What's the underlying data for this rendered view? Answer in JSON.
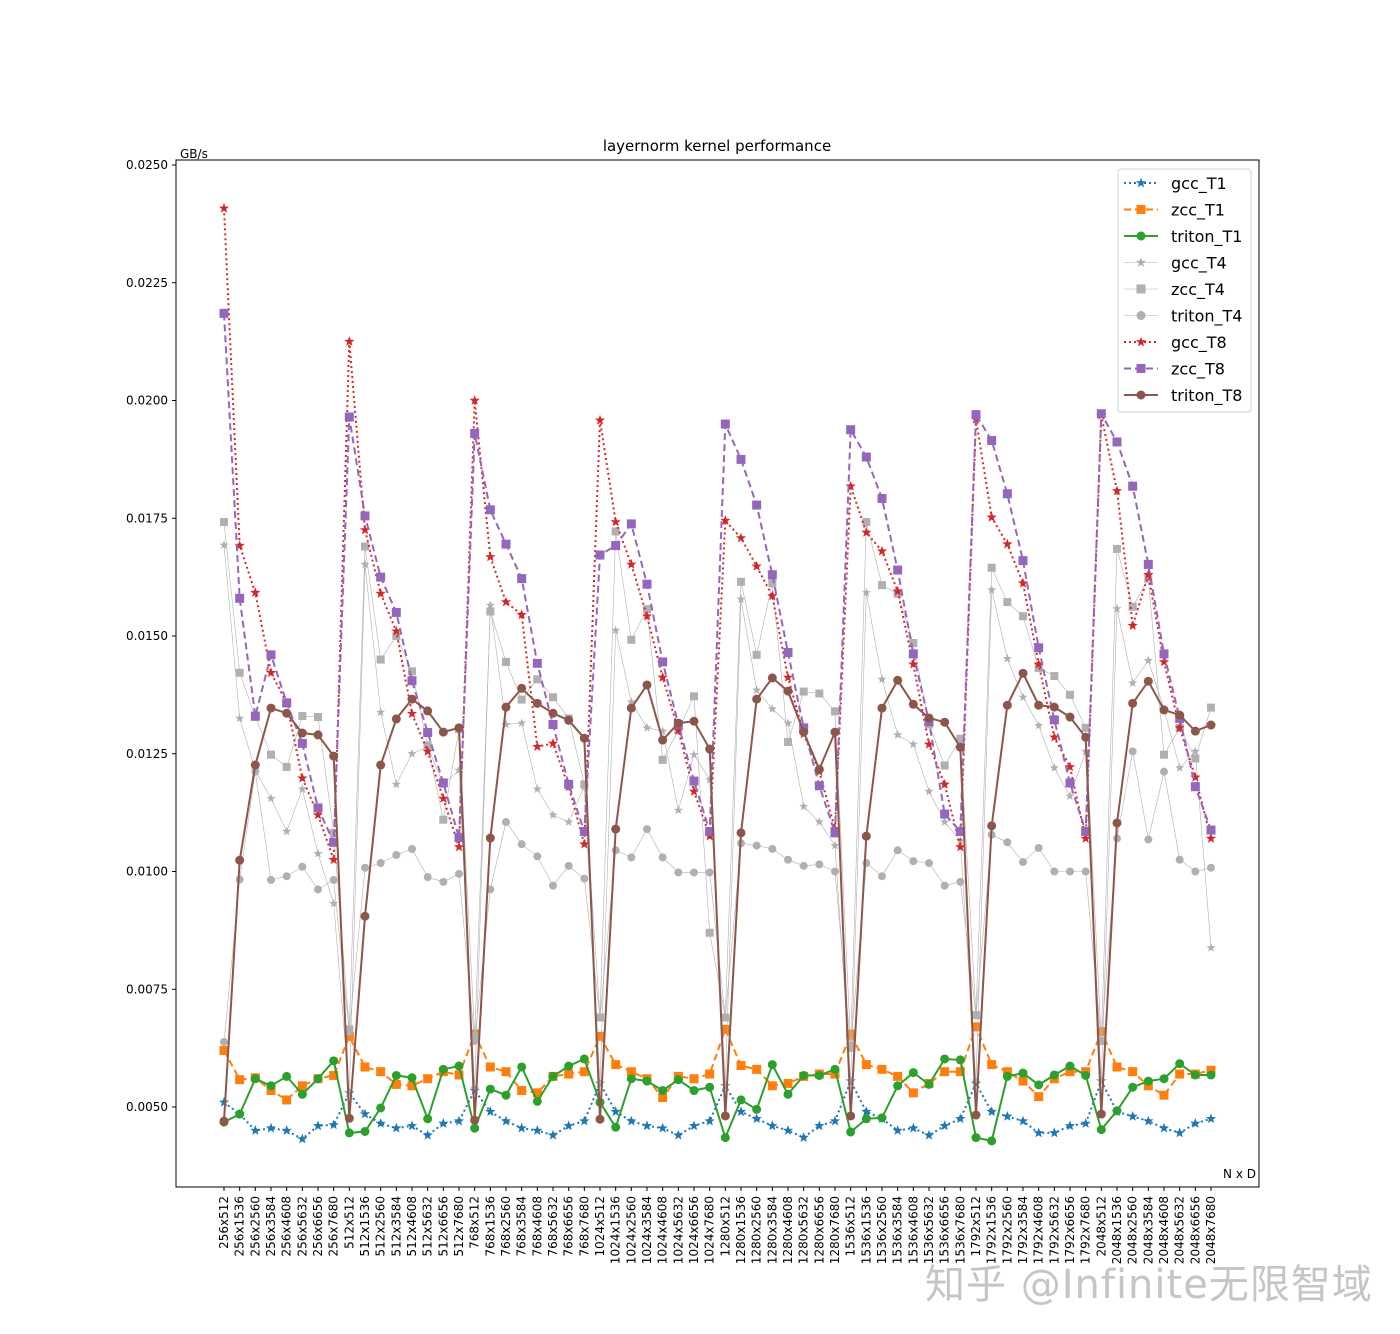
{
  "watermark": "知乎 @Infinite无限智域",
  "chart_data": {
    "type": "line",
    "title": "layernorm kernel performance",
    "xlabel": "N x D",
    "ylabel": "GB/s",
    "ylim": [
      0.0039,
      0.0251
    ],
    "yticks": [
      "0.0050",
      "0.0075",
      "0.0100",
      "0.0125",
      "0.0150",
      "0.0175",
      "0.0200",
      "0.0225",
      "0.0250"
    ],
    "grid": false,
    "legend_position": "upper right",
    "categories": [
      "256x512",
      "256x1536",
      "256x2560",
      "256x3584",
      "256x4608",
      "256x5632",
      "256x6656",
      "256x7680",
      "512x512",
      "512x1536",
      "512x2560",
      "512x3584",
      "512x4608",
      "512x5632",
      "512x6656",
      "512x7680",
      "768x512",
      "768x1536",
      "768x2560",
      "768x3584",
      "768x4608",
      "768x5632",
      "768x6656",
      "768x7680",
      "1024x512",
      "1024x1536",
      "1024x2560",
      "1024x3584",
      "1024x4608",
      "1024x5632",
      "1024x6656",
      "1024x7680",
      "1280x512",
      "1280x1536",
      "1280x2560",
      "1280x3584",
      "1280x4608",
      "1280x5632",
      "1280x6656",
      "1280x7680",
      "1536x512",
      "1536x1536",
      "1536x2560",
      "1536x3584",
      "1536x4608",
      "1536x5632",
      "1536x6656",
      "1536x7680",
      "1792x512",
      "1792x1536",
      "1792x2560",
      "1792x3584",
      "1792x4608",
      "1792x5632",
      "1792x6656",
      "1792x7680",
      "2048x512",
      "2048x1536",
      "2048x2560",
      "2048x3584",
      "2048x4608",
      "2048x5632",
      "2048x6656",
      "2048x7680"
    ],
    "series": [
      {
        "name": "gcc_T1",
        "color": "#1f77b4",
        "linestyle": "dotted",
        "marker": "star",
        "width": 2,
        "values": [
          0.0051,
          0.00485,
          0.0045,
          0.00455,
          0.0045,
          0.00432,
          0.0046,
          0.00462,
          0.0053,
          0.00485,
          0.00465,
          0.00455,
          0.0046,
          0.0044,
          0.00465,
          0.0047,
          0.00535,
          0.0049,
          0.0047,
          0.00455,
          0.0045,
          0.0044,
          0.0046,
          0.0047,
          0.0055,
          0.0049,
          0.0047,
          0.0046,
          0.00455,
          0.0044,
          0.0046,
          0.0047,
          0.00545,
          0.0049,
          0.00475,
          0.0046,
          0.0045,
          0.00435,
          0.0046,
          0.0047,
          0.00555,
          0.0049,
          0.00475,
          0.0045,
          0.00455,
          0.0044,
          0.0046,
          0.00475,
          0.0055,
          0.0049,
          0.0048,
          0.0047,
          0.00445,
          0.00445,
          0.0046,
          0.00465,
          0.00555,
          0.0049,
          0.0048,
          0.0047,
          0.00455,
          0.00445,
          0.00465,
          0.00475
        ]
      },
      {
        "name": "zcc_T1",
        "color": "#ff7f0e",
        "linestyle": "dashed",
        "marker": "square",
        "width": 2,
        "values": [
          0.0062,
          0.00558,
          0.00562,
          0.00535,
          0.00515,
          0.00545,
          0.0056,
          0.00567,
          0.0065,
          0.00585,
          0.00575,
          0.00548,
          0.00545,
          0.0056,
          0.00575,
          0.00568,
          0.00655,
          0.00585,
          0.00575,
          0.00535,
          0.0053,
          0.00565,
          0.0057,
          0.00575,
          0.0065,
          0.0059,
          0.00575,
          0.0056,
          0.0052,
          0.00565,
          0.0056,
          0.0057,
          0.00665,
          0.00588,
          0.0058,
          0.00545,
          0.0055,
          0.00565,
          0.0057,
          0.0057,
          0.00655,
          0.0059,
          0.0058,
          0.00565,
          0.0053,
          0.0055,
          0.00575,
          0.00575,
          0.0067,
          0.0059,
          0.00575,
          0.00555,
          0.00522,
          0.0056,
          0.00575,
          0.00575,
          0.0066,
          0.00585,
          0.00575,
          0.00545,
          0.00525,
          0.0057,
          0.0057,
          0.00578
        ]
      },
      {
        "name": "triton_T1",
        "color": "#2ca02c",
        "linestyle": "solid",
        "marker": "circle",
        "width": 2,
        "values": [
          0.00468,
          0.00485,
          0.0056,
          0.00545,
          0.00565,
          0.00527,
          0.0056,
          0.00598,
          0.00445,
          0.00448,
          0.00498,
          0.00567,
          0.00562,
          0.00475,
          0.0058,
          0.00587,
          0.00455,
          0.00538,
          0.00525,
          0.00585,
          0.00512,
          0.00565,
          0.00587,
          0.00602,
          0.0051,
          0.00457,
          0.0056,
          0.00555,
          0.00535,
          0.00558,
          0.00535,
          0.00542,
          0.00435,
          0.00515,
          0.00495,
          0.0059,
          0.00527,
          0.00567,
          0.00567,
          0.0058,
          0.00447,
          0.00475,
          0.00477,
          0.00545,
          0.00573,
          0.00548,
          0.00602,
          0.006,
          0.00435,
          0.00428,
          0.00565,
          0.00572,
          0.00547,
          0.00568,
          0.00587,
          0.00567,
          0.00452,
          0.00492,
          0.00542,
          0.00555,
          0.0056,
          0.00592,
          0.00568,
          0.00568
        ]
      },
      {
        "name": "gcc_T4",
        "color": "#b0b0b0",
        "linestyle": "thin",
        "marker": "star",
        "width": 0.6,
        "values": [
          0.01693,
          0.01325,
          0.01215,
          0.01155,
          0.01085,
          0.01175,
          0.01038,
          0.00932,
          0.0053,
          0.01652,
          0.01338,
          0.01185,
          0.0125,
          0.01265,
          0.01185,
          0.01215,
          0.0054,
          0.01565,
          0.01312,
          0.01315,
          0.01175,
          0.0112,
          0.01105,
          0.0118,
          0.0055,
          0.01512,
          0.0136,
          0.01305,
          0.01298,
          0.0113,
          0.01248,
          0.01195,
          0.00545,
          0.01578,
          0.01385,
          0.01345,
          0.01315,
          0.01138,
          0.01105,
          0.01055,
          0.00555,
          0.01592,
          0.01408,
          0.0129,
          0.0127,
          0.0117,
          0.01105,
          0.01065,
          0.00555,
          0.01598,
          0.01452,
          0.0137,
          0.0131,
          0.0122,
          0.0116,
          0.01255,
          0.00555,
          0.01558,
          0.014,
          0.01448,
          0.01345,
          0.0122,
          0.01255,
          0.00838
        ]
      },
      {
        "name": "zcc_T4",
        "color": "#b0b0b0",
        "linestyle": "thin",
        "marker": "square",
        "width": 0.6,
        "values": [
          0.01742,
          0.01422,
          0.01328,
          0.01248,
          0.01222,
          0.0133,
          0.01328,
          0.01082,
          0.00665,
          0.0169,
          0.0145,
          0.015,
          0.01425,
          0.01268,
          0.0111,
          0.01302,
          0.0065,
          0.01552,
          0.01445,
          0.01365,
          0.01408,
          0.0137,
          0.01325,
          0.01185,
          0.0069,
          0.01722,
          0.01492,
          0.01557,
          0.01237,
          0.013,
          0.01372,
          0.0087,
          0.0069,
          0.01615,
          0.0146,
          0.01612,
          0.01275,
          0.01382,
          0.01378,
          0.0134,
          0.0063,
          0.01742,
          0.01608,
          0.0159,
          0.01485,
          0.01312,
          0.01225,
          0.01282,
          0.00695,
          0.01645,
          0.01572,
          0.01542,
          0.01432,
          0.01415,
          0.01375,
          0.01305,
          0.0064,
          0.01685,
          0.01562,
          0.01622,
          0.01248,
          0.01305,
          0.0124,
          0.01348
        ]
      },
      {
        "name": "triton_T4",
        "color": "#b0b0b0",
        "linestyle": "thin",
        "marker": "circle",
        "width": 0.6,
        "values": [
          0.00638,
          0.00983,
          0.01212,
          0.00982,
          0.0099,
          0.0101,
          0.00962,
          0.00982,
          0.0066,
          0.01008,
          0.01018,
          0.01035,
          0.01048,
          0.00988,
          0.00978,
          0.00995,
          0.0064,
          0.00962,
          0.01105,
          0.01058,
          0.01032,
          0.0097,
          0.01012,
          0.00985,
          0.0069,
          0.01045,
          0.0103,
          0.0109,
          0.0103,
          0.00998,
          0.00998,
          0.00998,
          0.0069,
          0.0106,
          0.01055,
          0.01048,
          0.01025,
          0.01012,
          0.01015,
          0.01,
          0.00625,
          0.01018,
          0.0099,
          0.01045,
          0.01022,
          0.01018,
          0.0097,
          0.00978,
          0.00695,
          0.01078,
          0.01062,
          0.0102,
          0.0105,
          0.01,
          0.01,
          0.01,
          0.0064,
          0.0107,
          0.01255,
          0.01068,
          0.01212,
          0.01025,
          0.01,
          0.01008
        ]
      },
      {
        "name": "gcc_T8",
        "color": "#d62728",
        "linestyle": "dotted",
        "marker": "star",
        "width": 2,
        "values": [
          0.02408,
          0.01692,
          0.01592,
          0.01422,
          0.01358,
          0.01198,
          0.0112,
          0.01025,
          0.02125,
          0.01725,
          0.0159,
          0.0151,
          0.01335,
          0.01255,
          0.01155,
          0.01052,
          0.02,
          0.01668,
          0.01572,
          0.01545,
          0.01265,
          0.01272,
          0.0118,
          0.01058,
          0.01958,
          0.01742,
          0.01652,
          0.01542,
          0.01412,
          0.013,
          0.0117,
          0.01075,
          0.01745,
          0.01708,
          0.01648,
          0.01585,
          0.01412,
          0.01292,
          0.01212,
          0.0109,
          0.01818,
          0.0172,
          0.0168,
          0.01595,
          0.0144,
          0.0127,
          0.01185,
          0.01052,
          0.0196,
          0.01752,
          0.01695,
          0.01612,
          0.0144,
          0.01285,
          0.01222,
          0.0107,
          0.01968,
          0.01808,
          0.01522,
          0.0163,
          0.01445,
          0.01305,
          0.012,
          0.0107
        ]
      },
      {
        "name": "zcc_T8",
        "color": "#9467bd",
        "linestyle": "dashed",
        "marker": "square",
        "width": 2,
        "values": [
          0.02185,
          0.0158,
          0.0133,
          0.0146,
          0.01358,
          0.01272,
          0.01135,
          0.01062,
          0.01965,
          0.01755,
          0.01625,
          0.0155,
          0.01405,
          0.01295,
          0.01188,
          0.01072,
          0.0193,
          0.01768,
          0.01695,
          0.01622,
          0.01442,
          0.01312,
          0.01185,
          0.01085,
          0.01672,
          0.01692,
          0.01738,
          0.0161,
          0.01445,
          0.01312,
          0.01192,
          0.01085,
          0.0195,
          0.01875,
          0.01778,
          0.0163,
          0.01465,
          0.01305,
          0.01182,
          0.01082,
          0.01938,
          0.0188,
          0.01792,
          0.0164,
          0.01462,
          0.01318,
          0.01122,
          0.01085,
          0.0197,
          0.01915,
          0.01802,
          0.0166,
          0.01475,
          0.01322,
          0.01188,
          0.01085,
          0.01972,
          0.01912,
          0.01818,
          0.01652,
          0.01462,
          0.01325,
          0.0118,
          0.01088
        ]
      },
      {
        "name": "triton_T8",
        "color": "#8c564b",
        "linestyle": "solid",
        "marker": "circle",
        "width": 2,
        "values": [
          0.0047,
          0.01024,
          0.01226,
          0.01347,
          0.01336,
          0.01294,
          0.0129,
          0.01245,
          0.00476,
          0.00905,
          0.01226,
          0.01324,
          0.01366,
          0.01341,
          0.01296,
          0.01305,
          0.00472,
          0.01071,
          0.01349,
          0.01389,
          0.01357,
          0.01336,
          0.01321,
          0.01283,
          0.00474,
          0.0109,
          0.01347,
          0.01396,
          0.01279,
          0.01315,
          0.01319,
          0.0126,
          0.00481,
          0.01082,
          0.01366,
          0.01411,
          0.01383,
          0.01296,
          0.01217,
          0.01296,
          0.00481,
          0.01075,
          0.01347,
          0.01406,
          0.01355,
          0.01326,
          0.01317,
          0.01264,
          0.00483,
          0.01097,
          0.01353,
          0.01421,
          0.01353,
          0.01349,
          0.01328,
          0.01285,
          0.00485,
          0.01103,
          0.01357,
          0.01404,
          0.01343,
          0.01332,
          0.01298,
          0.01311
        ]
      }
    ]
  }
}
